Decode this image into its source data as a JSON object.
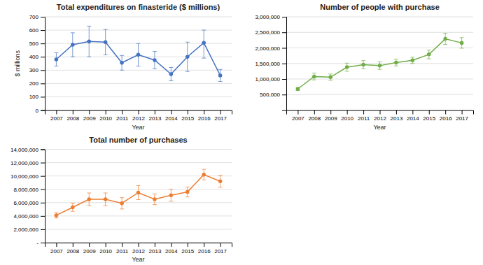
{
  "chart_data": [
    {
      "type": "line",
      "title": "Total expenditures on finasteride ($ millions)",
      "xlabel": "Year",
      "ylabel": "$ millions",
      "x": [
        2007,
        2008,
        2009,
        2010,
        2011,
        2012,
        2013,
        2014,
        2015,
        2016,
        2017
      ],
      "values": [
        380,
        490,
        515,
        510,
        355,
        415,
        375,
        270,
        400,
        505,
        260
      ],
      "errors_low": [
        50,
        90,
        115,
        95,
        55,
        85,
        65,
        50,
        110,
        115,
        45
      ],
      "errors_high": [
        50,
        90,
        115,
        95,
        55,
        85,
        65,
        50,
        110,
        95,
        45
      ],
      "color": "#4472C4",
      "marker": "circle",
      "xlim": [
        2006.3,
        2017.7
      ],
      "xticks": [
        2007,
        2008,
        2009,
        2010,
        2011,
        2012,
        2013,
        2014,
        2015,
        2016,
        2017
      ],
      "ylim": [
        0,
        700
      ],
      "yticks": [
        0,
        100,
        200,
        300,
        400,
        500,
        600,
        700
      ],
      "grid": true
    },
    {
      "type": "line",
      "title": "Number of people with purchase",
      "xlabel": "Year",
      "x": [
        2007,
        2008,
        2009,
        2010,
        2011,
        2012,
        2013,
        2014,
        2015,
        2016,
        2017
      ],
      "values": [
        680000,
        1080000,
        1060000,
        1380000,
        1460000,
        1430000,
        1530000,
        1600000,
        1790000,
        2290000,
        2160000
      ],
      "errors_low": [
        50000,
        110000,
        100000,
        130000,
        130000,
        120000,
        110000,
        100000,
        140000,
        180000,
        170000
      ],
      "errors_high": [
        50000,
        110000,
        100000,
        130000,
        130000,
        120000,
        110000,
        100000,
        140000,
        180000,
        170000
      ],
      "color": "#70AD47",
      "marker": "circle",
      "xlim": [
        2006.3,
        2017.7
      ],
      "xticks": [
        2007,
        2008,
        2009,
        2010,
        2011,
        2012,
        2013,
        2014,
        2015,
        2016,
        2017
      ],
      "ylim": [
        0,
        3000000
      ],
      "yticks": [
        {
          "value": 500000,
          "label": "500,000"
        },
        {
          "value": 1000000,
          "label": "1,000,000"
        },
        {
          "value": 1500000,
          "label": "1,500,000"
        },
        {
          "value": 2000000,
          "label": "2,000,000"
        },
        {
          "value": 2500000,
          "label": "2,500,000"
        },
        {
          "value": 3000000,
          "label": "3,000,000"
        }
      ],
      "grid": true
    },
    {
      "type": "line",
      "title": "Total number of purchases",
      "xlabel": "Year",
      "x": [
        2007,
        2008,
        2009,
        2010,
        2011,
        2012,
        2013,
        2014,
        2015,
        2016,
        2017
      ],
      "values": [
        4100000,
        5300000,
        6500000,
        6500000,
        5900000,
        7500000,
        6500000,
        7100000,
        7600000,
        10200000,
        9200000
      ],
      "errors_low": [
        400000,
        600000,
        950000,
        950000,
        850000,
        1050000,
        800000,
        900000,
        750000,
        800000,
        900000
      ],
      "errors_high": [
        400000,
        600000,
        950000,
        950000,
        850000,
        1050000,
        800000,
        900000,
        750000,
        800000,
        900000
      ],
      "color": "#ED7D31",
      "marker": "circle",
      "xlim": [
        2006.3,
        2017.7
      ],
      "xticks": [
        2007,
        2008,
        2009,
        2010,
        2011,
        2012,
        2013,
        2014,
        2015,
        2016,
        2017
      ],
      "ylim": [
        0,
        14000000
      ],
      "yticks": [
        {
          "value": 0,
          "label": "-"
        },
        {
          "value": 2000000,
          "label": "2,000,000"
        },
        {
          "value": 4000000,
          "label": "4,000,000"
        },
        {
          "value": 6000000,
          "label": "6,000,000"
        },
        {
          "value": 8000000,
          "label": "8,000,000"
        },
        {
          "value": 10000000,
          "label": "10,000,000"
        },
        {
          "value": 12000000,
          "label": "12,000,000"
        },
        {
          "value": 14000000,
          "label": "14,000,000"
        }
      ],
      "grid": true
    }
  ]
}
